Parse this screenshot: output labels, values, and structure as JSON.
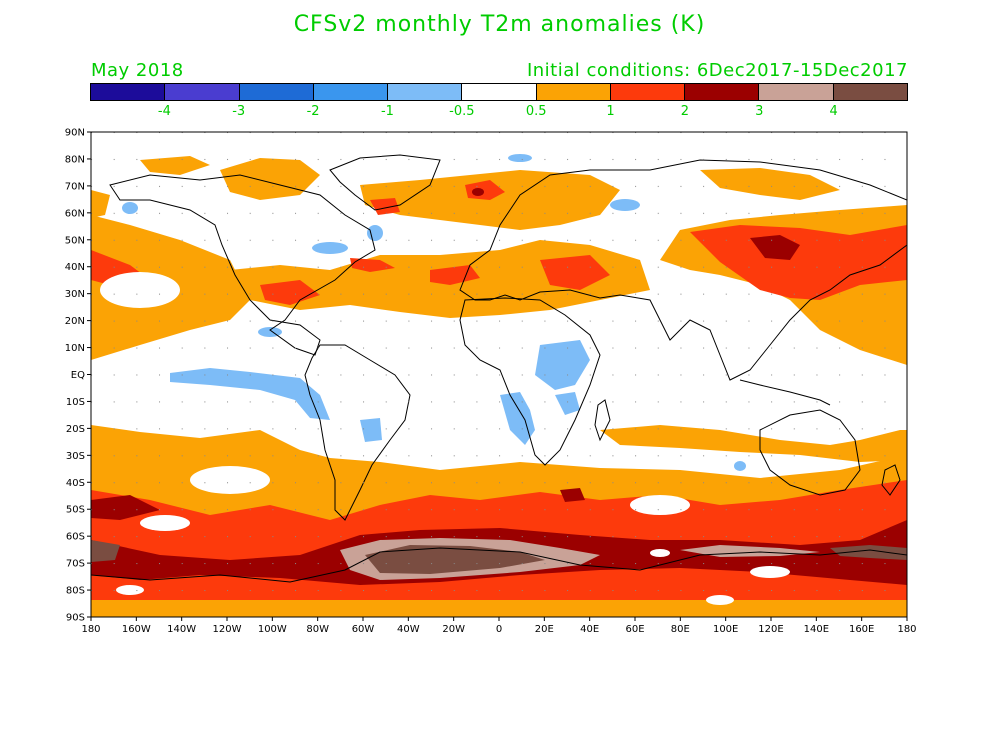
{
  "title": "CFSv2 monthly T2m anomalies (K)",
  "valid_month": "May 2018",
  "initial_conditions": "Initial conditions: 6Dec2017-15Dec2017",
  "legend": {
    "colors": [
      "#1c0c9a",
      "#4a3dd0",
      "#1e6bd6",
      "#3a96ee",
      "#7dbcf7",
      "#ffffff",
      "#fba305",
      "#fd3a0c",
      "#9b0000",
      "#c9a297",
      "#7a4d41"
    ],
    "labels": [
      "-4",
      "-3",
      "-2",
      "-1",
      "-0.5",
      "0.5",
      "1",
      "2",
      "3",
      "4"
    ]
  },
  "axes": {
    "lat_labels": [
      "90N",
      "80N",
      "70N",
      "60N",
      "50N",
      "40N",
      "30N",
      "20N",
      "10N",
      "EQ",
      "10S",
      "20S",
      "30S",
      "40S",
      "50S",
      "60S",
      "70S",
      "80S",
      "90S"
    ],
    "lon_labels": [
      "180",
      "160W",
      "140W",
      "120W",
      "100W",
      "80W",
      "60W",
      "40W",
      "20W",
      "0",
      "20E",
      "40E",
      "60E",
      "80E",
      "100E",
      "120E",
      "140E",
      "160E",
      "180"
    ]
  }
}
